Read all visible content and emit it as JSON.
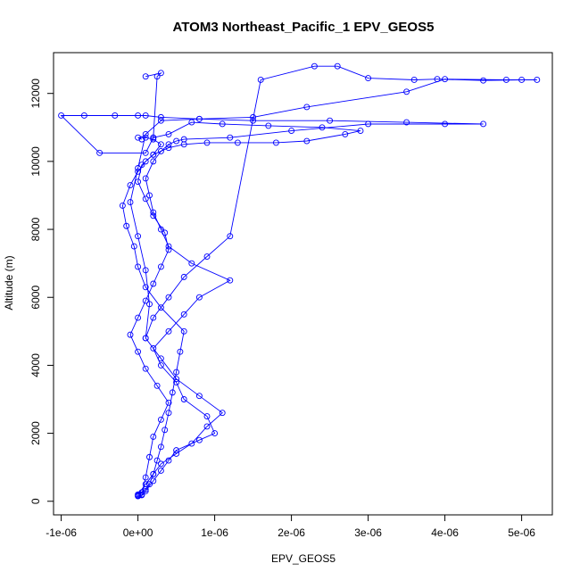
{
  "chart_data": {
    "type": "scatter",
    "title": "ATOM3 Northeast_Pacific_1 EPV_GEOS5",
    "xlabel": "EPV_GEOS5",
    "ylabel": "Altitude (m)",
    "xlim": [
      -1.1e-06,
      5.4e-06
    ],
    "ylim": [
      -400,
      13200
    ],
    "x_ticks": [
      -1e-06,
      0,
      1e-06,
      2e-06,
      3e-06,
      4e-06,
      5e-06
    ],
    "x_tick_labels": [
      "-1e-06",
      "0e+00",
      "1e-06",
      "2e-06",
      "3e-06",
      "4e-06",
      "5e-06"
    ],
    "y_ticks": [
      0,
      2000,
      4000,
      6000,
      8000,
      10000,
      12000
    ],
    "y_tick_labels": [
      "0",
      "2000",
      "4000",
      "6000",
      "8000",
      "10000",
      "12000"
    ],
    "grid": false,
    "legend": "none",
    "marker": "open-circle",
    "connected": true,
    "color": "#0000ff",
    "series": [
      {
        "x": [
          0.0,
          5e-08,
          1e-07,
          2e-07,
          3e-07,
          4e-07,
          5e-07,
          8e-07,
          1e-06,
          9e-07,
          6e-07,
          5e-07,
          3e-07,
          2e-07,
          4e-07,
          6e-07,
          8e-07,
          1.2e-06,
          7e-07,
          4e-07,
          3e-07,
          2e-07,
          1.5e-07,
          1e-07,
          2e-07,
          3e-07,
          4e-07,
          5e-07,
          6e-07,
          1.2e-06,
          2e-06,
          3e-06,
          4e-06,
          4.5e-06,
          3.5e-06,
          2.5e-06,
          1.5e-06,
          8e-07,
          3e-07,
          1e-07,
          0.0,
          -3e-07,
          -7e-07,
          -1e-06,
          -5e-07,
          1e-07,
          2e-07,
          2.5e-07,
          3e-07,
          1e-07
        ],
        "y": [
          150,
          180,
          300,
          600,
          900,
          1200,
          1500,
          1800,
          2000,
          2500,
          3000,
          3500,
          4000,
          4500,
          5000,
          5500,
          6000,
          6500,
          7000,
          7500,
          8000,
          8500,
          9000,
          9500,
          10000,
          10300,
          10500,
          10600,
          10650,
          10700,
          10900,
          11100,
          11100,
          11100,
          11150,
          11200,
          11200,
          11250,
          11300,
          11350,
          11350,
          11350,
          11350,
          11350,
          10250,
          10250,
          10700,
          12500,
          12600,
          12500
        ]
      },
      {
        "x": [
          0.0,
          1e-07,
          2e-07,
          3e-07,
          5e-07,
          7e-07,
          9e-07,
          1.1e-06,
          8e-07,
          5e-07,
          3e-07,
          1e-07,
          2e-07,
          4e-07,
          6e-07,
          9e-07,
          1.2e-06,
          1.6e-06,
          2.3e-06,
          2.6e-06,
          3e-06,
          3.6e-06,
          3.9e-06,
          4.5e-06,
          5e-06,
          5.2e-06,
          4.8e-06,
          4e-06,
          3.5e-06,
          2.2e-06,
          1.5e-06,
          8e-07,
          3e-07,
          1e-07,
          0.0,
          -1e-07,
          0.0,
          1e-07,
          1.5e-07,
          1e-07
        ],
        "y": [
          200,
          500,
          800,
          1100,
          1400,
          1700,
          2200,
          2600,
          3100,
          3600,
          4200,
          4800,
          5400,
          6000,
          6600,
          7200,
          7800,
          12400,
          12800,
          12800,
          12450,
          12400,
          12420,
          12380,
          12400,
          12400,
          12400,
          12420,
          12050,
          11600,
          11300,
          11250,
          11200,
          10800,
          9800,
          8800,
          7800,
          6800,
          5800,
          4800
        ]
      },
      {
        "x": [
          5e-08,
          1e-07,
          1.5e-07,
          2e-07,
          3e-07,
          4e-07,
          2.5e-07,
          1e-07,
          0.0,
          -1e-07,
          0.0,
          1e-07,
          2e-07,
          3e-07,
          4e-07,
          3.5e-07,
          2e-07,
          1e-07,
          0.0,
          5e-08,
          2e-07,
          4e-07,
          6e-07,
          9e-07,
          1.3e-06,
          1.8e-06,
          2.2e-06,
          2.7e-06,
          2.9e-06,
          2.4e-06,
          1.7e-06,
          1.1e-06,
          7e-07,
          4e-07,
          2e-07
        ],
        "y": [
          200,
          700,
          1300,
          1900,
          2400,
          2900,
          3400,
          3900,
          4400,
          4900,
          5400,
          5900,
          6400,
          6900,
          7400,
          7900,
          8400,
          8900,
          9400,
          9900,
          10200,
          10400,
          10500,
          10550,
          10550,
          10550,
          10600,
          10800,
          10900,
          11000,
          11050,
          11100,
          11150,
          10800,
          10700
        ]
      },
      {
        "x": [
          0.0,
          0.0,
          2e-08,
          5e-08,
          1e-07,
          1.5e-07,
          2e-07,
          2.5e-07,
          3e-07,
          3.5e-07,
          4e-07,
          4.5e-07,
          5e-07,
          5.5e-07,
          6e-07,
          3e-07,
          1e-07,
          0.0,
          -5e-08,
          -1.5e-07,
          -2e-07,
          -1e-07,
          0.0,
          1e-07,
          2e-07,
          3e-07,
          2e-07,
          1e-07,
          0.0,
          5e-08
        ],
        "y": [
          170,
          170,
          200,
          260,
          350,
          500,
          800,
          1200,
          1600,
          2100,
          2600,
          3200,
          3800,
          4400,
          5000,
          5700,
          6300,
          6900,
          7500,
          8100,
          8700,
          9300,
          9700,
          10000,
          10200,
          10500,
          10650,
          10700,
          10700,
          10650
        ]
      }
    ]
  }
}
